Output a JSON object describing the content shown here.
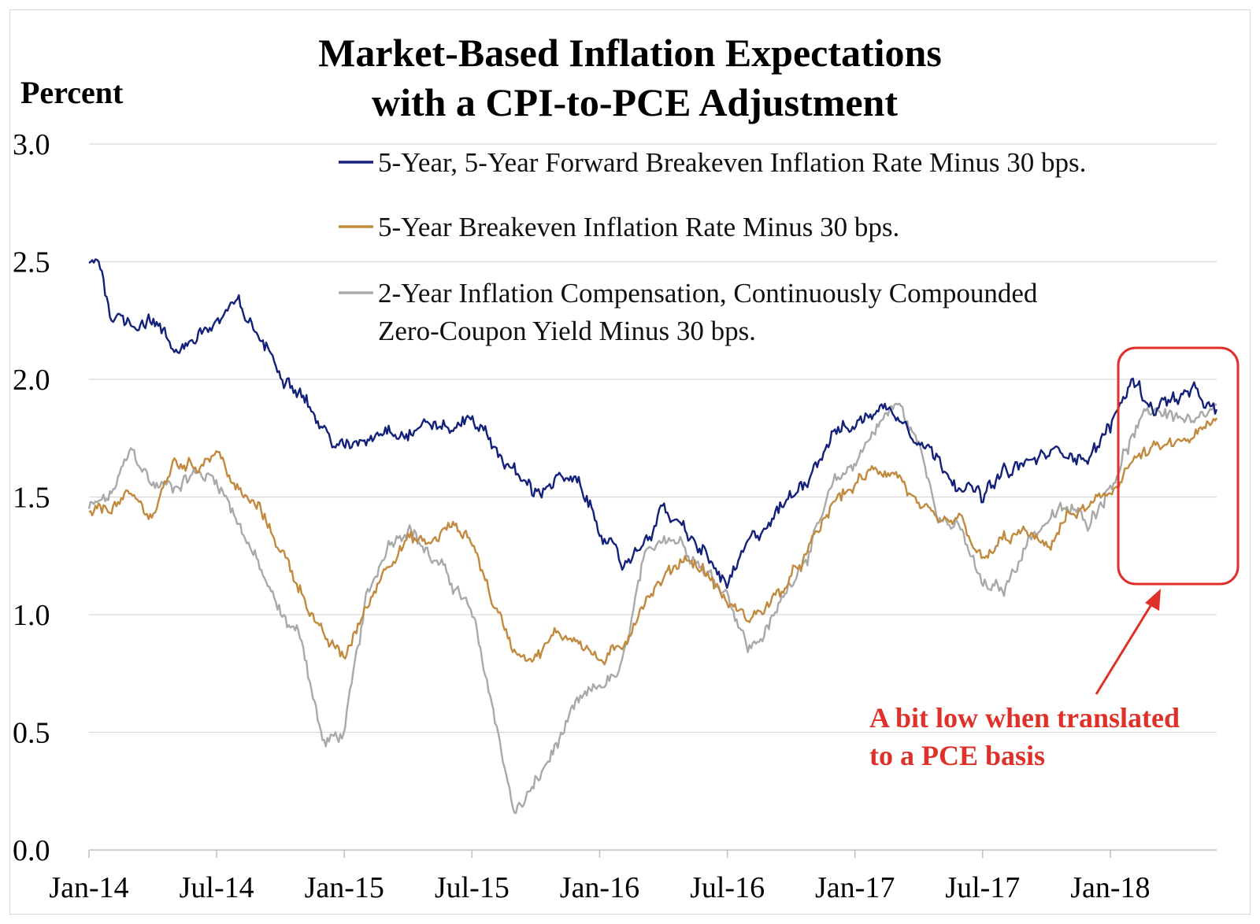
{
  "chart_data": {
    "type": "line",
    "title_lines": [
      "Market-Based Inflation Expectations",
      "with a CPI-to-PCE Adjustment"
    ],
    "ylabel": "Percent",
    "ylim": [
      0,
      3
    ],
    "yticks": [
      "0.0",
      "0.5",
      "1.0",
      "1.5",
      "2.0",
      "2.5",
      "3.0"
    ],
    "xlim": [
      "2014-01",
      "2018-06"
    ],
    "xticks": [
      {
        "label": "Jan-14",
        "month": 0
      },
      {
        "label": "Jul-14",
        "month": 6
      },
      {
        "label": "Jan-15",
        "month": 12
      },
      {
        "label": "Jul-15",
        "month": 18
      },
      {
        "label": "Jan-16",
        "month": 24
      },
      {
        "label": "Jul-16",
        "month": 30
      },
      {
        "label": "Jan-17",
        "month": 36
      },
      {
        "label": "Jul-17",
        "month": 42
      },
      {
        "label": "Jan-18",
        "month": 48
      }
    ],
    "grid": true,
    "legend_placement": "top-right",
    "series": [
      {
        "name": "5-Year, 5-Year Forward Breakeven Inflation Rate Minus 30 bps.",
        "color": "#14217a",
        "x": [
          "2014-01",
          "2014-01-15",
          "2014-02",
          "2014-03",
          "2014-04",
          "2014-05",
          "2014-06",
          "2014-07",
          "2014-08",
          "2014-09",
          "2014-10",
          "2014-11",
          "2014-12",
          "2015-01",
          "2015-02",
          "2015-03",
          "2015-04",
          "2015-05",
          "2015-06",
          "2015-07",
          "2015-08",
          "2015-09",
          "2015-10",
          "2015-11",
          "2015-12",
          "2016-01",
          "2016-02",
          "2016-03",
          "2016-04",
          "2016-05",
          "2016-06",
          "2016-07",
          "2016-08",
          "2016-09",
          "2016-10",
          "2016-11",
          "2016-12",
          "2017-01",
          "2017-02",
          "2017-03",
          "2017-04",
          "2017-05",
          "2017-06",
          "2017-07",
          "2017-08",
          "2017-09",
          "2017-10",
          "2017-11",
          "2017-12",
          "2018-01",
          "2018-02",
          "2018-03",
          "2018-04",
          "2018-05",
          "2018-06"
        ],
        "y": [
          2.5,
          2.52,
          2.28,
          2.24,
          2.26,
          2.12,
          2.18,
          2.24,
          2.32,
          2.18,
          2.04,
          1.95,
          1.78,
          1.7,
          1.75,
          1.8,
          1.77,
          1.82,
          1.78,
          1.85,
          1.72,
          1.6,
          1.52,
          1.58,
          1.55,
          1.38,
          1.2,
          1.3,
          1.45,
          1.35,
          1.25,
          1.12,
          1.3,
          1.4,
          1.5,
          1.62,
          1.78,
          1.8,
          1.88,
          1.86,
          1.75,
          1.65,
          1.55,
          1.5,
          1.6,
          1.64,
          1.68,
          1.7,
          1.66,
          1.8,
          2.0,
          1.88,
          1.92,
          1.94,
          1.85
        ]
      },
      {
        "name": "5-Year Breakeven Inflation Rate Minus 30 bps.",
        "color": "#c18a3e",
        "x": [
          "2014-01",
          "2014-02",
          "2014-03",
          "2014-04",
          "2014-05",
          "2014-06",
          "2014-07",
          "2014-08",
          "2014-09",
          "2014-10",
          "2014-11",
          "2014-12",
          "2015-01",
          "2015-02",
          "2015-03",
          "2015-04",
          "2015-05",
          "2015-06",
          "2015-07",
          "2015-08",
          "2015-09",
          "2015-10",
          "2015-11",
          "2015-12",
          "2016-01",
          "2016-02",
          "2016-03",
          "2016-04",
          "2016-05",
          "2016-06",
          "2016-07",
          "2016-08",
          "2016-09",
          "2016-10",
          "2016-11",
          "2016-12",
          "2017-01",
          "2017-02",
          "2017-03",
          "2017-04",
          "2017-05",
          "2017-06",
          "2017-07",
          "2017-08",
          "2017-09",
          "2017-10",
          "2017-11",
          "2017-12",
          "2018-01",
          "2018-02",
          "2018-03",
          "2018-04",
          "2018-05",
          "2018-06"
        ],
        "y": [
          1.42,
          1.46,
          1.5,
          1.42,
          1.65,
          1.63,
          1.7,
          1.52,
          1.45,
          1.28,
          1.1,
          0.9,
          0.82,
          1.02,
          1.22,
          1.32,
          1.3,
          1.38,
          1.32,
          1.05,
          0.85,
          0.82,
          0.92,
          0.9,
          0.8,
          0.85,
          1.05,
          1.15,
          1.25,
          1.18,
          1.05,
          0.98,
          1.05,
          1.15,
          1.3,
          1.48,
          1.55,
          1.62,
          1.6,
          1.45,
          1.38,
          1.4,
          1.22,
          1.32,
          1.35,
          1.28,
          1.42,
          1.45,
          1.52,
          1.65,
          1.7,
          1.72,
          1.76,
          1.82
        ]
      },
      {
        "name": "2-Year Inflation Compensation, Continuously Compounded Zero-Coupon Yield Minus 30 bps.",
        "name_lines": [
          "2-Year Inflation Compensation, Continuously Compounded",
          "Zero-Coupon Yield Minus 30 bps."
        ],
        "color": "#a9a9a9",
        "x": [
          "2014-01",
          "2014-02",
          "2014-03",
          "2014-04",
          "2014-05",
          "2014-06",
          "2014-07",
          "2014-08",
          "2014-09",
          "2014-10",
          "2014-11",
          "2014-12",
          "2015-01",
          "2015-02",
          "2015-03",
          "2015-04",
          "2015-05",
          "2015-06",
          "2015-07",
          "2015-08",
          "2015-09",
          "2015-10",
          "2015-11",
          "2015-12",
          "2016-01",
          "2016-02",
          "2016-03",
          "2016-04",
          "2016-05",
          "2016-06",
          "2016-07",
          "2016-08",
          "2016-09",
          "2016-10",
          "2016-11",
          "2016-12",
          "2017-01",
          "2017-02",
          "2017-03",
          "2017-04",
          "2017-05",
          "2017-06",
          "2017-07",
          "2017-08",
          "2017-09",
          "2017-10",
          "2017-11",
          "2017-12",
          "2018-01",
          "2018-02",
          "2018-03",
          "2018-04",
          "2018-05",
          "2018-06"
        ],
        "y": [
          1.45,
          1.5,
          1.7,
          1.55,
          1.55,
          1.6,
          1.58,
          1.4,
          1.2,
          1.0,
          0.9,
          0.45,
          0.5,
          1.05,
          1.3,
          1.38,
          1.25,
          1.15,
          1.0,
          0.6,
          0.15,
          0.28,
          0.45,
          0.62,
          0.7,
          0.75,
          1.2,
          1.35,
          1.3,
          1.18,
          1.1,
          0.85,
          0.95,
          1.15,
          1.3,
          1.55,
          1.65,
          1.8,
          1.9,
          1.72,
          1.42,
          1.35,
          1.12,
          1.1,
          1.3,
          1.4,
          1.45,
          1.4,
          1.55,
          1.75,
          1.88,
          1.85,
          1.8,
          1.88
        ]
      }
    ],
    "annotation": {
      "text_lines": [
        "A bit low when translated",
        "to a PCE basis"
      ],
      "color": "#e0302a"
    }
  }
}
